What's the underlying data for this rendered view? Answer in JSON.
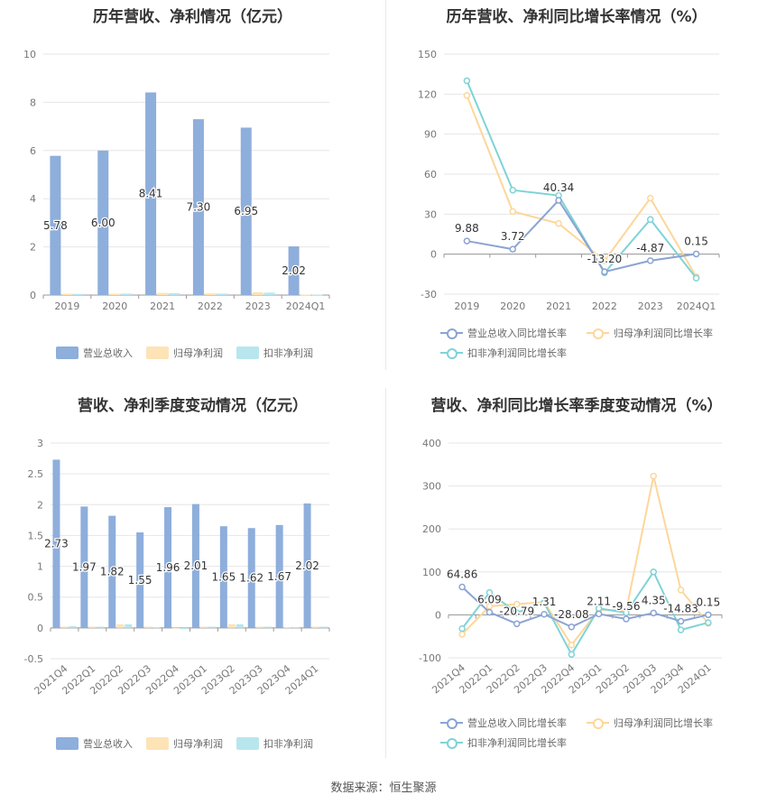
{
  "colors": {
    "revenue": "#8eaedc",
    "parent_profit": "#fde3b6",
    "nonrecurring_profit": "#b8e6ee",
    "revenue_line": "#8ba4d3",
    "parent_line": "#fcd79a",
    "nonrec_line": "#7fd3d6"
  },
  "source": "数据来源：恒生聚源",
  "chart_data": [
    {
      "id": "annual-amount",
      "type": "bar",
      "title": "历年营收、净利情况（亿元）",
      "categories": [
        "2019",
        "2020",
        "2021",
        "2022",
        "2023",
        "2024Q1"
      ],
      "ylim": [
        0,
        10
      ],
      "yticks": [
        0,
        2,
        4,
        6,
        8,
        10
      ],
      "series": [
        {
          "name": "营业总收入",
          "color_key": "revenue",
          "values": [
            5.78,
            6.0,
            8.41,
            7.3,
            6.95,
            2.02
          ],
          "labels": [
            "5.78",
            "6.00",
            "8.41",
            "7.30",
            "6.95",
            "2.02"
          ]
        },
        {
          "name": "归母净利润",
          "color_key": "parent_profit",
          "values": [
            0.06,
            0.06,
            0.09,
            0.07,
            0.12,
            0.02
          ]
        },
        {
          "name": "扣非净利润",
          "color_key": "nonrecurring_profit",
          "values": [
            0.05,
            0.06,
            0.08,
            0.06,
            0.1,
            0.02
          ]
        }
      ]
    },
    {
      "id": "annual-growth",
      "type": "line",
      "title": "历年营收、净利同比增长率情况（%）",
      "categories": [
        "2019",
        "2020",
        "2021",
        "2022",
        "2023",
        "2024Q1"
      ],
      "ylim": [
        -30,
        150
      ],
      "yticks": [
        -30,
        0,
        30,
        60,
        90,
        120,
        150
      ],
      "series": [
        {
          "name": "营业总收入同比增长率",
          "color_key": "revenue_line",
          "values": [
            9.88,
            3.72,
            40.34,
            -13.2,
            -4.87,
            0.15
          ],
          "labels": [
            "9.88",
            "3.72",
            "40.34",
            "-13.20",
            "-4.87",
            "0.15"
          ]
        },
        {
          "name": "归母净利润同比增长率",
          "color_key": "parent_line",
          "values": [
            119,
            32,
            23,
            -5,
            42,
            -17
          ]
        },
        {
          "name": "扣非净利润同比增长率",
          "color_key": "nonrec_line",
          "values": [
            130,
            48,
            44,
            -14,
            26,
            -18
          ]
        }
      ]
    },
    {
      "id": "quarterly-amount",
      "type": "bar",
      "title": "营收、净利季度变动情况（亿元）",
      "categories": [
        "2021Q4",
        "2022Q1",
        "2022Q2",
        "2022Q3",
        "2022Q4",
        "2023Q1",
        "2023Q2",
        "2023Q3",
        "2023Q4",
        "2024Q1"
      ],
      "ylim": [
        -0.5,
        3
      ],
      "yticks": [
        -0.5,
        0,
        0.5,
        1,
        1.5,
        2,
        2.5,
        3
      ],
      "series": [
        {
          "name": "营业总收入",
          "color_key": "revenue",
          "values": [
            2.73,
            1.97,
            1.82,
            1.55,
            1.96,
            2.01,
            1.65,
            1.62,
            1.67,
            2.02
          ],
          "labels": [
            "2.73",
            "1.97",
            "1.82",
            "1.55",
            "1.96",
            "2.01",
            "1.65",
            "1.62",
            "1.67",
            "2.02"
          ]
        },
        {
          "name": "归母净利润",
          "color_key": "parent_profit",
          "values": [
            0.02,
            0.02,
            0.06,
            0.02,
            -0.01,
            0.02,
            0.06,
            0.02,
            0.01,
            0.02
          ]
        },
        {
          "name": "扣非净利润",
          "color_key": "nonrecurring_profit",
          "values": [
            0.03,
            0.02,
            0.06,
            0.01,
            -0.02,
            0.02,
            0.06,
            0.02,
            0.01,
            0.02
          ]
        }
      ]
    },
    {
      "id": "quarterly-growth",
      "type": "line",
      "title": "营收、净利同比增长率季度变动情况（%）",
      "categories": [
        "2021Q4",
        "2022Q1",
        "2022Q2",
        "2022Q3",
        "2022Q4",
        "2023Q1",
        "2023Q2",
        "2023Q3",
        "2023Q4",
        "2024Q1"
      ],
      "ylim": [
        -100,
        400
      ],
      "yticks": [
        -100,
        0,
        100,
        200,
        300,
        400
      ],
      "series": [
        {
          "name": "营业总收入同比增长率",
          "color_key": "revenue_line",
          "values": [
            64.86,
            6.09,
            -20.79,
            1.31,
            -28.08,
            2.11,
            -9.56,
            4.35,
            -14.83,
            0.15
          ],
          "labels": [
            "64.86",
            "6.09",
            "-20.79",
            "1.31",
            "-28.08",
            "2.11",
            "-9.56",
            "4.35",
            "-14.83",
            "0.15"
          ]
        },
        {
          "name": "归母净利润同比增长率",
          "color_key": "parent_line",
          "values": [
            -45,
            20,
            25,
            30,
            -70,
            12,
            10,
            323,
            58,
            -20
          ]
        },
        {
          "name": "扣非净利润同比增长率",
          "color_key": "nonrec_line",
          "values": [
            -32,
            52,
            5,
            28,
            -92,
            15,
            5,
            100,
            -35,
            -18
          ]
        }
      ]
    }
  ]
}
